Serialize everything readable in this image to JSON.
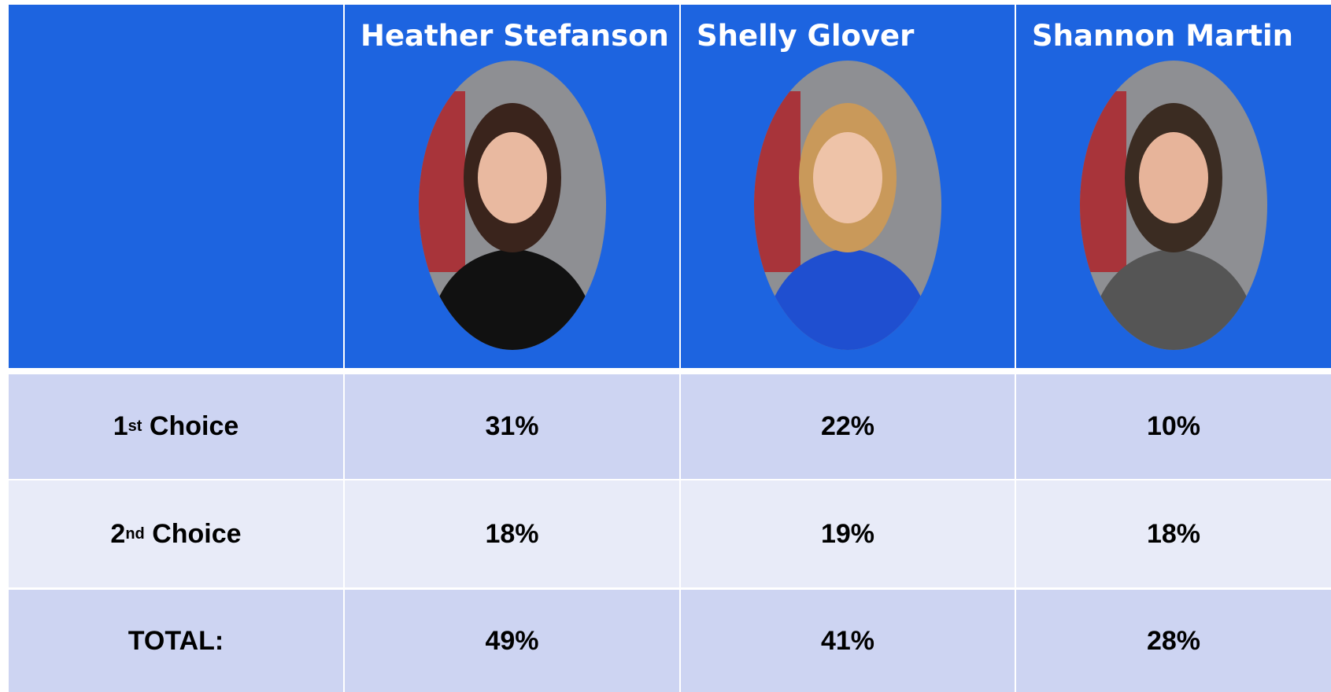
{
  "table": {
    "columns": [
      "Heather Stefanson",
      "Shelly Glover",
      "Shannon Martin"
    ],
    "rows": [
      {
        "label": {
          "num": "1",
          "sup": "st",
          "text": "Choice"
        },
        "cells": [
          "31%",
          "22%",
          "10%"
        ]
      },
      {
        "label": {
          "num": "2",
          "sup": "nd",
          "text": "Choice"
        },
        "cells": [
          "18%",
          "19%",
          "18%"
        ]
      },
      {
        "label": {
          "num": "",
          "sup": "",
          "text": "TOTAL:"
        },
        "cells": [
          "49%",
          "41%",
          "28%"
        ]
      }
    ]
  }
}
